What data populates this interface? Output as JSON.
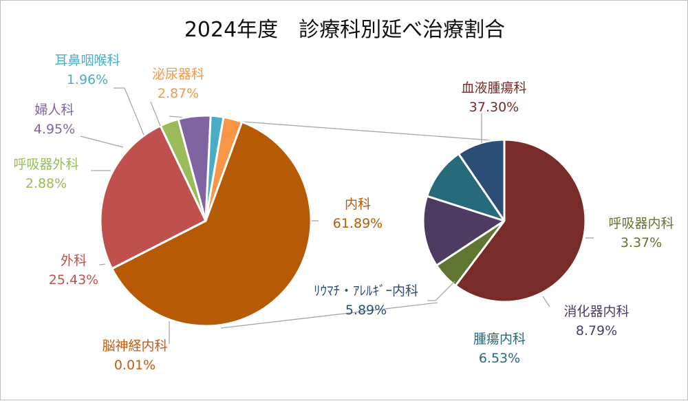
{
  "chart_data": [
    {
      "type": "pie",
      "title": "2024年度　診療科別延べ治療割合",
      "slices": [
        {
          "name": "内科",
          "label_value": "61.89%",
          "value": 61.89,
          "color": "#B75A05"
        },
        {
          "name": "脳神経内科",
          "label_value": "0.01%",
          "value": 0.01,
          "color": "#C55A11"
        },
        {
          "name": "外科",
          "label_value": "25.43%",
          "value": 25.43,
          "color": "#C0504D"
        },
        {
          "name": "呼吸器外科",
          "label_value": "2.88%",
          "value": 2.88,
          "color": "#9BBB59"
        },
        {
          "name": "婦人科",
          "label_value": "4.95%",
          "value": 4.95,
          "color": "#8064A2"
        },
        {
          "name": "耳鼻咽喉科",
          "label_value": "1.96%",
          "value": 1.96,
          "color": "#4BACC6"
        },
        {
          "name": "泌尿器科",
          "label_value": "2.87%",
          "value": 2.87,
          "color": "#F79646"
        }
      ]
    },
    {
      "type": "pie",
      "slices": [
        {
          "name": "血液腫瘍科",
          "label_value": "37.30%",
          "value": 37.3,
          "color": "#772C2A"
        },
        {
          "name": "呼吸器内科",
          "label_value": "3.37%",
          "value": 3.37,
          "color": "#5F7530"
        },
        {
          "name": "消化器内科",
          "label_value": "8.79%",
          "value": 8.79,
          "color": "#4D3B62"
        },
        {
          "name": "腫瘍内科",
          "label_value": "6.53%",
          "value": 6.53,
          "color": "#276A7C"
        },
        {
          "name": "ﾘｳﾏﾁ・ｱﾚﾙｷﾞｰ内科",
          "label_value": "5.89%",
          "value": 5.89,
          "color": "#2C4D75"
        }
      ]
    }
  ]
}
